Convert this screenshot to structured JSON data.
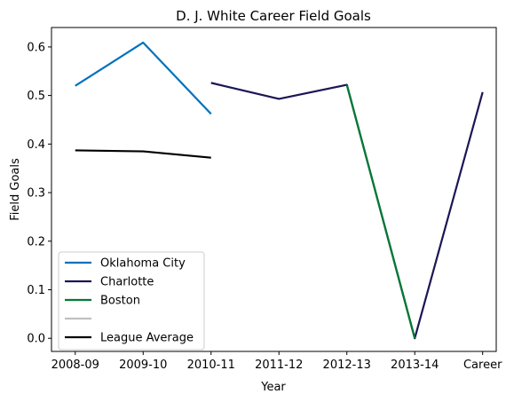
{
  "chart_data": {
    "type": "line",
    "title": "D. J. White Career Field Goals",
    "xlabel": "Year",
    "ylabel": "Field Goals",
    "categories": [
      "2008-09",
      "2009-10",
      "2010-11",
      "2011-12",
      "2012-13",
      "2013-14",
      "Career"
    ],
    "yticks": [
      "0.0",
      "0.1",
      "0.2",
      "0.3",
      "0.4",
      "0.5",
      "0.6"
    ],
    "ylim": [
      -0.027,
      0.64
    ],
    "xlim": [
      -0.35,
      6.2
    ],
    "grid": false,
    "legend_position": "lower-left",
    "series": [
      {
        "name": "Oklahoma City",
        "color": "#0072BD",
        "points": [
          [
            0,
            0.52
          ],
          [
            1,
            0.609
          ],
          [
            2,
            0.462
          ]
        ]
      },
      {
        "name": "Charlotte",
        "color": "#1B1655",
        "points": [
          [
            2,
            0.526
          ],
          [
            3,
            0.493
          ],
          [
            4,
            0.522
          ],
          [
            5,
            0.0
          ],
          [
            6,
            0.507
          ]
        ]
      },
      {
        "name": "Boston",
        "color": "#007A33",
        "points": [
          [
            4,
            0.522
          ],
          [
            5,
            0.0
          ]
        ]
      },
      {
        "name": "",
        "color": "#BEC0C2",
        "points": []
      },
      {
        "name": "League Average",
        "color": "#000000",
        "points": [
          [
            0,
            0.387
          ],
          [
            1,
            0.385
          ],
          [
            2,
            0.372
          ]
        ]
      }
    ]
  }
}
